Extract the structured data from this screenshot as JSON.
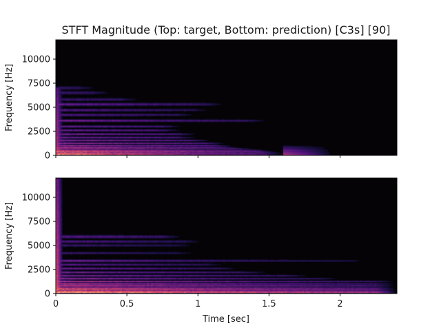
{
  "chart_data": {
    "type": "heatmap",
    "title": "STFT Magnitude (Top: target, Bottom: prediction) [C3s] [90]",
    "colormap": "magma",
    "background_color": "#050306",
    "xlim": [
      0,
      2.4
    ],
    "ylim": [
      0,
      12000
    ],
    "xlabel": "Time [sec]",
    "ylabel": "Frequency [Hz]",
    "x_ticks": [
      {
        "value": 0,
        "label": "0"
      },
      {
        "value": 0.5,
        "label": "0.5"
      },
      {
        "value": 1,
        "label": "1"
      },
      {
        "value": 1.5,
        "label": "1.5"
      },
      {
        "value": 2,
        "label": "2"
      }
    ],
    "y_ticks": [
      {
        "value": 0,
        "label": "0"
      },
      {
        "value": 2500,
        "label": "2500"
      },
      {
        "value": 5000,
        "label": "5000"
      },
      {
        "value": 7500,
        "label": "7500"
      },
      {
        "value": 10000,
        "label": "10000"
      }
    ],
    "panels": [
      {
        "name": "target",
        "onset_time": 0.0,
        "onset_energy": 0.55,
        "onset_fmax": 7000,
        "bands": [
          {
            "f": 130,
            "i": 1.0,
            "t_end": 1.6,
            "decay": 0.7
          },
          {
            "f": 260,
            "i": 0.85,
            "t_end": 1.6,
            "decay": 0.6
          },
          {
            "f": 400,
            "i": 0.7,
            "t_end": 1.55,
            "decay": 0.55
          },
          {
            "f": 530,
            "i": 0.6,
            "t_end": 1.5,
            "decay": 0.55
          },
          {
            "f": 680,
            "i": 0.5,
            "t_end": 1.4,
            "decay": 0.5
          },
          {
            "f": 820,
            "i": 0.45,
            "t_end": 1.3,
            "decay": 0.5
          },
          {
            "f": 1000,
            "i": 0.42,
            "t_end": 1.25,
            "decay": 0.45
          },
          {
            "f": 1250,
            "i": 0.38,
            "t_end": 1.2,
            "decay": 0.45
          },
          {
            "f": 1550,
            "i": 0.34,
            "t_end": 1.1,
            "decay": 0.45
          },
          {
            "f": 1850,
            "i": 0.3,
            "t_end": 1.0,
            "decay": 0.45
          },
          {
            "f": 2200,
            "i": 0.3,
            "t_end": 1.0,
            "decay": 0.45
          },
          {
            "f": 2600,
            "i": 0.26,
            "t_end": 0.9,
            "decay": 0.45
          },
          {
            "f": 3000,
            "i": 0.24,
            "t_end": 0.9,
            "decay": 0.45
          },
          {
            "f": 3600,
            "i": 0.3,
            "t_end": 1.5,
            "decay": 0.5
          },
          {
            "f": 4200,
            "i": 0.2,
            "t_end": 1.0,
            "decay": 0.5
          },
          {
            "f": 4700,
            "i": 0.2,
            "t_end": 1.1,
            "decay": 0.5
          },
          {
            "f": 5300,
            "i": 0.25,
            "t_end": 1.2,
            "decay": 0.5
          },
          {
            "f": 5800,
            "i": 0.15,
            "t_end": 0.6,
            "decay": 0.5
          },
          {
            "f": 6500,
            "i": 0.14,
            "t_end": 0.4,
            "decay": 0.5
          },
          {
            "f": 7000,
            "i": 0.12,
            "t_end": 0.3,
            "decay": 0.5
          }
        ],
        "events": [
          {
            "t_start": 1.6,
            "t_end": 1.95,
            "f_max": 1100,
            "intensity": 0.45
          }
        ]
      },
      {
        "name": "prediction",
        "onset_time": 0.0,
        "onset_energy": 0.7,
        "onset_fmax": 12000,
        "bands": [
          {
            "f": 130,
            "i": 1.0,
            "t_end": 2.4,
            "decay": 0.25
          },
          {
            "f": 260,
            "i": 0.8,
            "t_end": 2.4,
            "decay": 0.3
          },
          {
            "f": 400,
            "i": 0.72,
            "t_end": 2.4,
            "decay": 0.3
          },
          {
            "f": 530,
            "i": 0.62,
            "t_end": 2.4,
            "decay": 0.35
          },
          {
            "f": 680,
            "i": 0.55,
            "t_end": 2.4,
            "decay": 0.35
          },
          {
            "f": 820,
            "i": 0.5,
            "t_end": 2.4,
            "decay": 0.35
          },
          {
            "f": 1000,
            "i": 0.5,
            "t_end": 2.4,
            "decay": 0.4
          },
          {
            "f": 1250,
            "i": 0.46,
            "t_end": 2.4,
            "decay": 0.4
          },
          {
            "f": 1550,
            "i": 0.4,
            "t_end": 2.0,
            "decay": 0.45
          },
          {
            "f": 1850,
            "i": 0.34,
            "t_end": 1.8,
            "decay": 0.45
          },
          {
            "f": 2200,
            "i": 0.3,
            "t_end": 1.5,
            "decay": 0.45
          },
          {
            "f": 2600,
            "i": 0.26,
            "t_end": 1.3,
            "decay": 0.5
          },
          {
            "f": 3000,
            "i": 0.22,
            "t_end": 1.2,
            "decay": 0.5
          },
          {
            "f": 3400,
            "i": 0.3,
            "t_end": 2.2,
            "decay": 0.5
          },
          {
            "f": 4200,
            "i": 0.14,
            "t_end": 1.0,
            "decay": 0.5
          },
          {
            "f": 5000,
            "i": 0.14,
            "t_end": 1.0,
            "decay": 0.5
          },
          {
            "f": 5400,
            "i": 0.18,
            "t_end": 1.05,
            "decay": 0.5
          },
          {
            "f": 5900,
            "i": 0.22,
            "t_end": 0.9,
            "decay": 0.5
          }
        ],
        "events": []
      }
    ]
  }
}
